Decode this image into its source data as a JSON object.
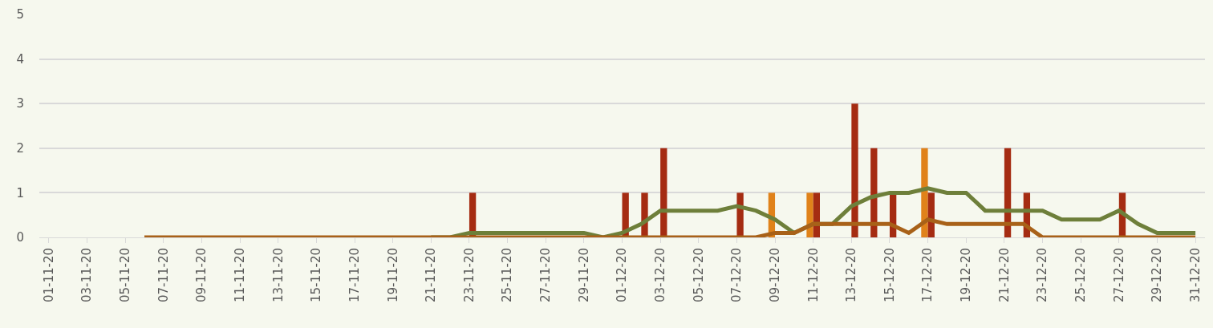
{
  "chart_data": {
    "type": "bar",
    "categories": [
      "01-11-20",
      null,
      "03-11-20",
      null,
      "05-11-20",
      null,
      "07-11-20",
      null,
      "09-11-20",
      null,
      "11-11-20",
      null,
      "13-11-20",
      null,
      "15-11-20",
      null,
      "17-11-20",
      null,
      "19-11-20",
      null,
      "21-11-20",
      null,
      "23-11-20",
      null,
      "25-11-20",
      null,
      "27-11-20",
      null,
      "29-11-20",
      null,
      "01-12-20",
      null,
      "03-12-20",
      null,
      "05-12-20",
      null,
      "07-12-20",
      null,
      "09-12-20",
      null,
      "11-12-20",
      null,
      "13-12-20",
      null,
      "15-12-20",
      null,
      "17-12-20",
      null,
      "19-12-20",
      null,
      "21-12-20",
      null,
      "23-12-20",
      null,
      "25-12-20",
      null,
      "27-12-20",
      null,
      "29-12-20",
      null,
      "31-12-20"
    ],
    "series": [
      {
        "color": "#e0821a",
        "values": [
          0,
          0,
          0,
          0,
          0,
          0,
          0,
          0,
          0,
          0,
          0,
          0,
          0,
          0,
          0,
          0,
          0,
          0,
          0,
          0,
          0,
          0,
          0,
          0,
          0,
          0,
          0,
          0,
          0,
          0,
          0,
          0,
          0,
          0,
          0,
          0,
          0,
          0,
          1,
          0,
          1,
          0,
          0,
          0,
          0,
          0,
          2,
          0,
          0,
          0,
          0,
          0,
          0,
          0,
          0,
          0,
          0,
          0,
          0,
          0,
          0
        ]
      },
      {
        "color": "#a52c12",
        "values": [
          0,
          0,
          0,
          0,
          0,
          0,
          0,
          0,
          0,
          0,
          0,
          0,
          0,
          0,
          0,
          0,
          0,
          0,
          0,
          0,
          0,
          0,
          1,
          0,
          0,
          0,
          0,
          0,
          0,
          0,
          1,
          1,
          2,
          0,
          0,
          0,
          1,
          0,
          0,
          0,
          1,
          0,
          3,
          2,
          1,
          0,
          1,
          0,
          0,
          0,
          2,
          1,
          0,
          0,
          0,
          0,
          1,
          0,
          0,
          0,
          0
        ]
      },
      {
        "type": "line",
        "color": "#6e7f3a",
        "values": [
          null,
          null,
          null,
          null,
          null,
          null,
          null,
          null,
          null,
          null,
          null,
          null,
          null,
          null,
          null,
          null,
          null,
          null,
          null,
          null,
          0,
          0,
          0.1,
          0.1,
          0.1,
          0.1,
          0.1,
          0.1,
          0.1,
          0,
          0.1,
          0.3,
          0.6,
          0.6,
          0.6,
          0.6,
          0.7,
          0.6,
          0.4,
          0.1,
          0.3,
          0.3,
          0.7,
          0.9,
          1,
          1,
          1.1,
          1,
          1,
          0.6,
          0.6,
          0.6,
          0.6,
          0.4,
          0.4,
          0.4,
          0.6,
          0.3,
          0.1,
          0.1,
          0.1
        ]
      },
      {
        "type": "line",
        "color": "#a86118",
        "values": [
          null,
          null,
          null,
          null,
          null,
          0,
          0,
          0,
          0,
          0,
          0,
          0,
          0,
          0,
          0,
          0,
          0,
          0,
          0,
          0,
          0,
          0,
          0,
          0,
          0,
          0,
          0,
          0,
          0,
          0,
          0,
          0,
          0,
          0,
          0,
          0,
          0,
          0,
          0.1,
          0.1,
          0.3,
          0.3,
          0.3,
          0.3,
          0.3,
          0.1,
          0.4,
          0.3,
          0.3,
          0.3,
          0.3,
          0.3,
          0,
          0,
          0,
          0,
          0,
          0,
          0,
          0,
          0
        ]
      }
    ],
    "ylim": [
      0,
      5
    ],
    "yticks": [
      0,
      1,
      2,
      3,
      4,
      5
    ],
    "grid": "y",
    "line_style": "solid"
  }
}
